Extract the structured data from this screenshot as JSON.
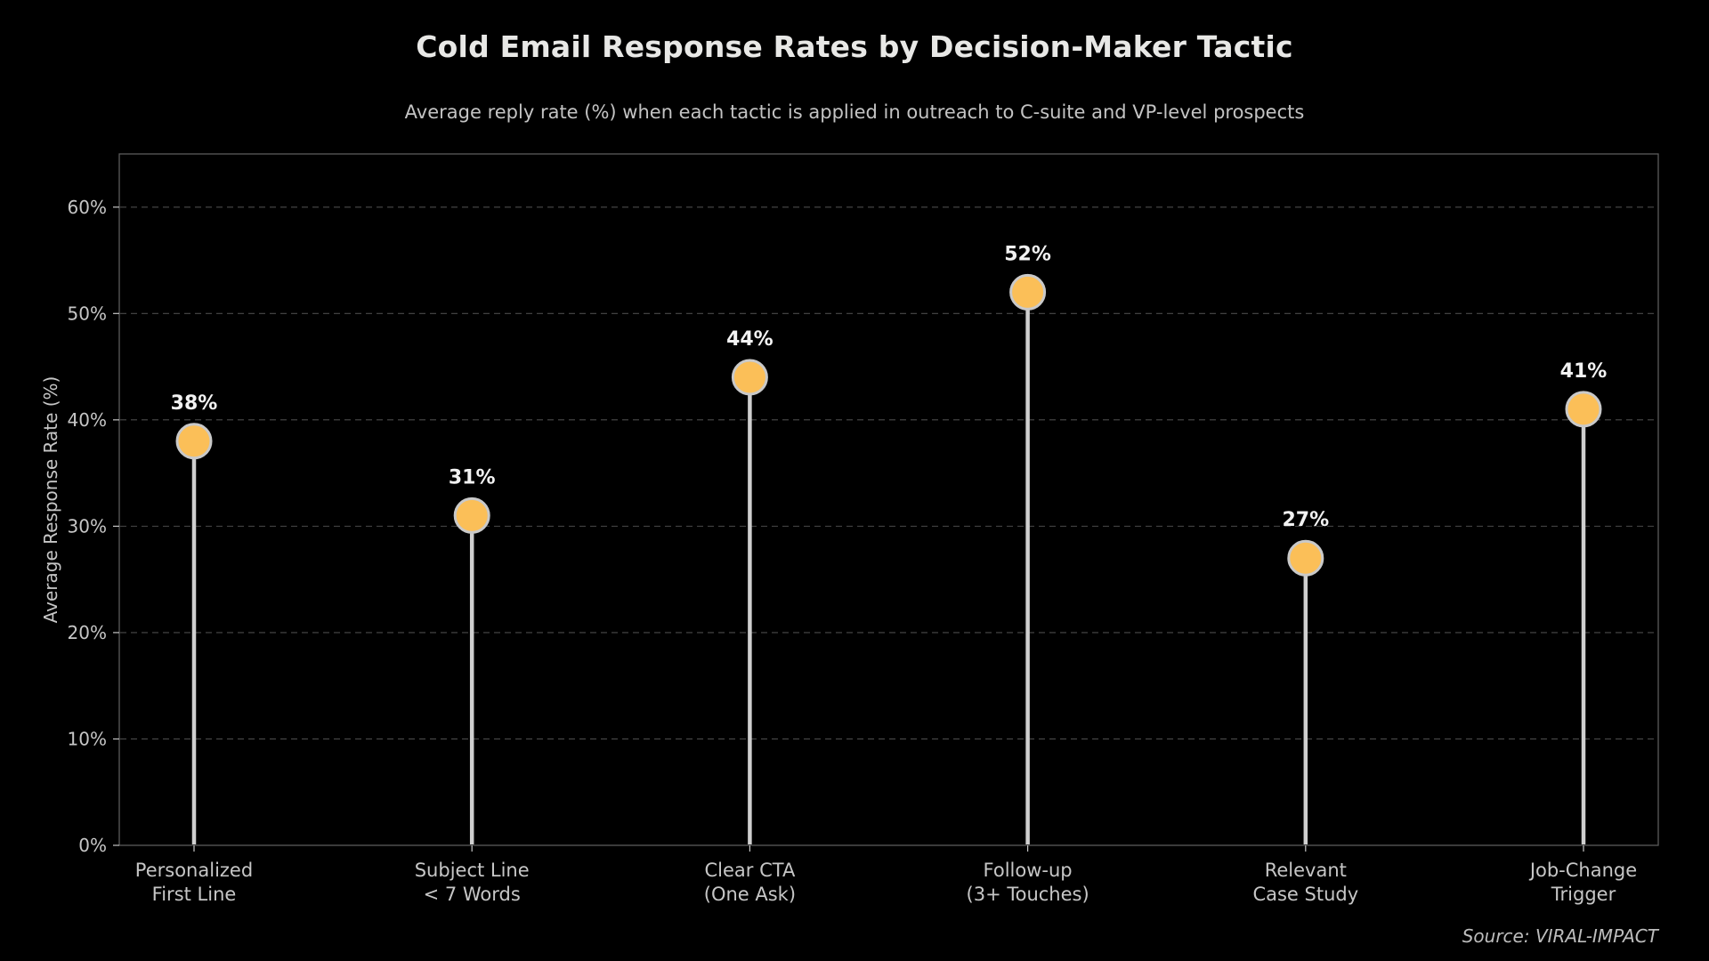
{
  "chart_data": {
    "type": "lollipop",
    "title": "Cold Email Response Rates by Decision-Maker Tactic",
    "subtitle": "Average reply rate (%) when each tactic is applied in outreach to C-suite and VP-level prospects",
    "categories": [
      "Personalized\nFirst Line",
      "Subject Line\n< 7 Words",
      "Clear CTA\n(One Ask)",
      "Follow-up\n(3+ Touches)",
      "Relevant\nCase Study",
      "Job-Change\nTrigger"
    ],
    "values": [
      38,
      31,
      44,
      52,
      27,
      41
    ],
    "value_labels": [
      "38%",
      "31%",
      "44%",
      "52%",
      "27%",
      "41%"
    ],
    "xlabel": "",
    "ylabel": "Average Response Rate (%)",
    "ylim": [
      0,
      65
    ],
    "yticks": [
      0,
      10,
      20,
      30,
      40,
      50,
      60
    ],
    "ytick_labels": [
      "0%",
      "10%",
      "20%",
      "30%",
      "40%",
      "50%",
      "60%"
    ],
    "grid": "horizontal dashed gridlines at each 10% tick",
    "legend": "none",
    "source": "Source: VIRAL-IMPACT",
    "colors": {
      "background": "#000000",
      "marker_fill": "#FBBF58",
      "marker_border": "#C9C9C9",
      "stem": "#CFCFCF",
      "grid": "#4A4A4A",
      "spine": "#5B5B5B",
      "tick_text": "#C6C6C6",
      "title_text": "#E8E8E6",
      "subtitle_text": "#C3C3C3",
      "value_text": "#F2F2F2",
      "source_text": "#BDBDBD"
    }
  }
}
